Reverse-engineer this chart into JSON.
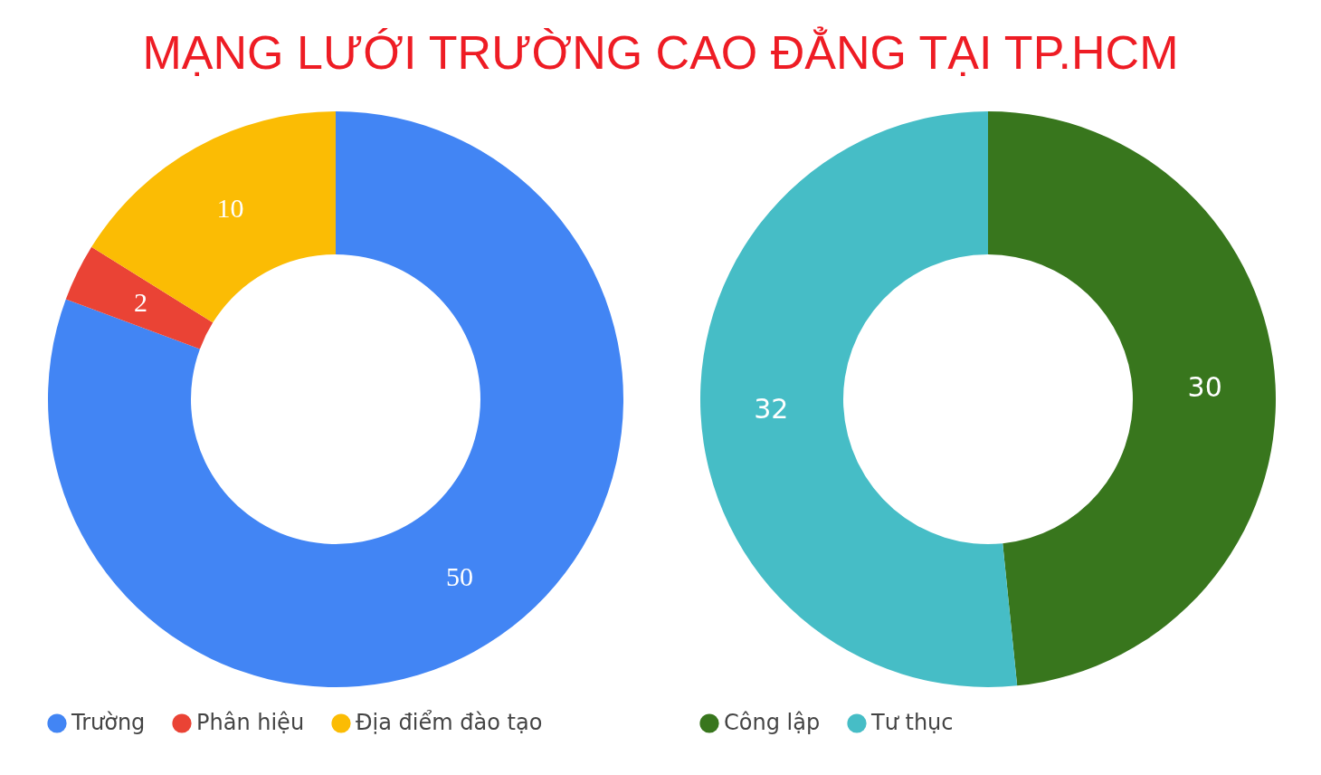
{
  "chart_data": [
    {
      "type": "donut",
      "title": "MẠNG LƯỚI TRƯỜNG CAO ĐẲNG TẠI TP.HCM",
      "categories": [
        "Trường",
        "Phân hiệu",
        "Địa điểm đào tạo"
      ],
      "values": [
        50,
        2,
        10
      ],
      "colors": [
        "#4285f4",
        "#ea4335",
        "#fbbc04"
      ],
      "data_labels": true,
      "legend": "bottom"
    },
    {
      "type": "donut",
      "categories": [
        "Công lập",
        "Tư thục"
      ],
      "values": [
        30,
        32
      ],
      "colors": [
        "#38761d",
        "#46bdc6"
      ],
      "data_labels": true,
      "legend": "bottom"
    }
  ]
}
